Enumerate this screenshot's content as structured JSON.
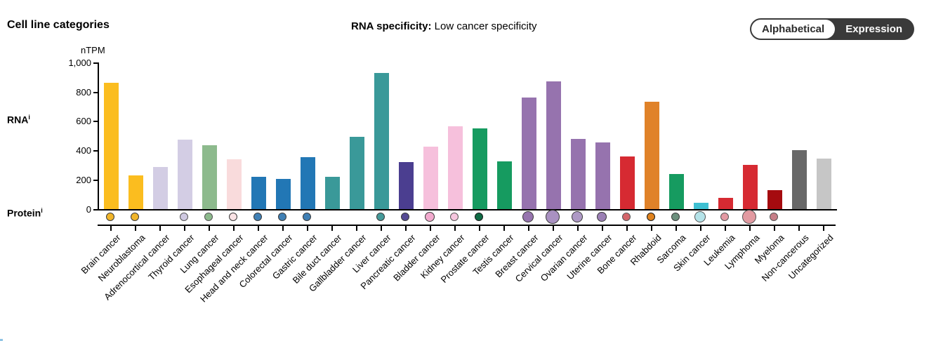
{
  "header": {
    "title": "Cell line categories",
    "rna_specificity_label": "RNA specificity:",
    "rna_specificity_value": "Low cancer specificity",
    "toggle": {
      "options": [
        {
          "label": "Alphabetical",
          "selected": true
        },
        {
          "label": "Expression",
          "selected": false
        }
      ]
    }
  },
  "axis": {
    "unit": "nTPM",
    "rna_label": "RNA",
    "protein_label": "Protein",
    "info_superscript": "i"
  },
  "chart_data": {
    "type": "bar",
    "title": "Cell line categories",
    "xlabel": "",
    "ylabel": "nTPM",
    "ylim": [
      0,
      1000
    ],
    "grid": false,
    "legend": "none",
    "yticks": [
      {
        "value": 0,
        "label": "0"
      },
      {
        "value": 200,
        "label": "200"
      },
      {
        "value": 400,
        "label": "400"
      },
      {
        "value": 600,
        "label": "600"
      },
      {
        "value": 800,
        "label": "800"
      },
      {
        "value": 1000,
        "label": "1,000"
      }
    ],
    "categories": [
      "Brain cancer",
      "Neuroblastoma",
      "Adrenocortical cancer",
      "Thyroid cancer",
      "Lung cancer",
      "Esophageal cancer",
      "Head and neck cancer",
      "Colorectal cancer",
      "Gastric cancer",
      "Bile duct cancer",
      "Gallbladder cancer",
      "Liver cancer",
      "Pancreatic cancer",
      "Bladder cancer",
      "Kidney cancer",
      "Prostate cancer",
      "Testis cancer",
      "Breast cancer",
      "Cervical cancer",
      "Ovarian cancer",
      "Uterine cancer",
      "Bone cancer",
      "Rhabdoid",
      "Sarcoma",
      "Skin cancer",
      "Leukemia",
      "Lymphoma",
      "Myeloma",
      "Non-cancerous",
      "Uncategorized"
    ],
    "values": [
      860,
      230,
      285,
      475,
      435,
      340,
      220,
      205,
      355,
      220,
      490,
      925,
      320,
      425,
      565,
      550,
      325,
      760,
      870,
      480,
      455,
      360,
      730,
      240,
      45,
      75,
      300,
      130,
      400,
      345
    ],
    "bar_colors": [
      "#FBBD1F",
      "#FBBD1F",
      "#D3CDE4",
      "#D3CDE4",
      "#8DBA8D",
      "#F9DBDC",
      "#2277B5",
      "#2277B5",
      "#2277B5",
      "#3A9999",
      "#3A9999",
      "#3A9999",
      "#4B3E90",
      "#F6C0DC",
      "#F6C0DC",
      "#169B60",
      "#169B60",
      "#9673AE",
      "#9673AE",
      "#9673AE",
      "#9673AE",
      "#D62A32",
      "#E08229",
      "#169B60",
      "#3FC0D2",
      "#D62A32",
      "#D62A32",
      "#A50B0F",
      "#686868",
      "#C6C6C6"
    ],
    "protein_dots": [
      {
        "color": "#F0B52B",
        "radius": 6,
        "ring": "#3A3A3A"
      },
      {
        "color": "#F0B52B",
        "radius": 6,
        "ring": "#3A3A3A"
      },
      null,
      {
        "color": "#CFC9E1",
        "radius": 6,
        "ring": "#555555"
      },
      {
        "color": "#8CB98C",
        "radius": 6,
        "ring": "#555555"
      },
      {
        "color": "#FAE3E5",
        "radius": 6,
        "ring": "#3A3A3A"
      },
      {
        "color": "#4080B5",
        "radius": 6,
        "ring": "#3A3A3A"
      },
      {
        "color": "#4080B5",
        "radius": 6,
        "ring": "#3A3A3A"
      },
      {
        "color": "#4080B5",
        "radius": 6,
        "ring": "#3A3A3A"
      },
      null,
      null,
      {
        "color": "#459A9A",
        "radius": 6,
        "ring": "#3A3A3A"
      },
      {
        "color": "#554A93",
        "radius": 6,
        "ring": "#3A3A3A"
      },
      {
        "color": "#F2AACE",
        "radius": 7,
        "ring": "#3A3A3A"
      },
      {
        "color": "#F5C6DE",
        "radius": 6,
        "ring": "#555555"
      },
      {
        "color": "#0F6B45",
        "radius": 6,
        "ring": "#1A1A1A"
      },
      null,
      {
        "color": "#9674AE",
        "radius": 8,
        "ring": "#3A3A3A"
      },
      {
        "color": "#A991C1",
        "radius": 10,
        "ring": "#3A3A3A"
      },
      {
        "color": "#AE99C5",
        "radius": 8,
        "ring": "#3A3A3A"
      },
      {
        "color": "#9C80B5",
        "radius": 7,
        "ring": "#3A3A3A"
      },
      {
        "color": "#D4666B",
        "radius": 6,
        "ring": "#555555"
      },
      {
        "color": "#E0831F",
        "radius": 6,
        "ring": "#1A1A1A"
      },
      {
        "color": "#6C8F7D",
        "radius": 6,
        "ring": "#3A3A3A"
      },
      {
        "color": "#B5E3E9",
        "radius": 8,
        "ring": "#555555"
      },
      {
        "color": "#E39AA3",
        "radius": 6,
        "ring": "#555555"
      },
      {
        "color": "#E29AA1",
        "radius": 10,
        "ring": "#555555"
      },
      {
        "color": "#C67F88",
        "radius": 6,
        "ring": "#555555"
      },
      null,
      null
    ]
  }
}
